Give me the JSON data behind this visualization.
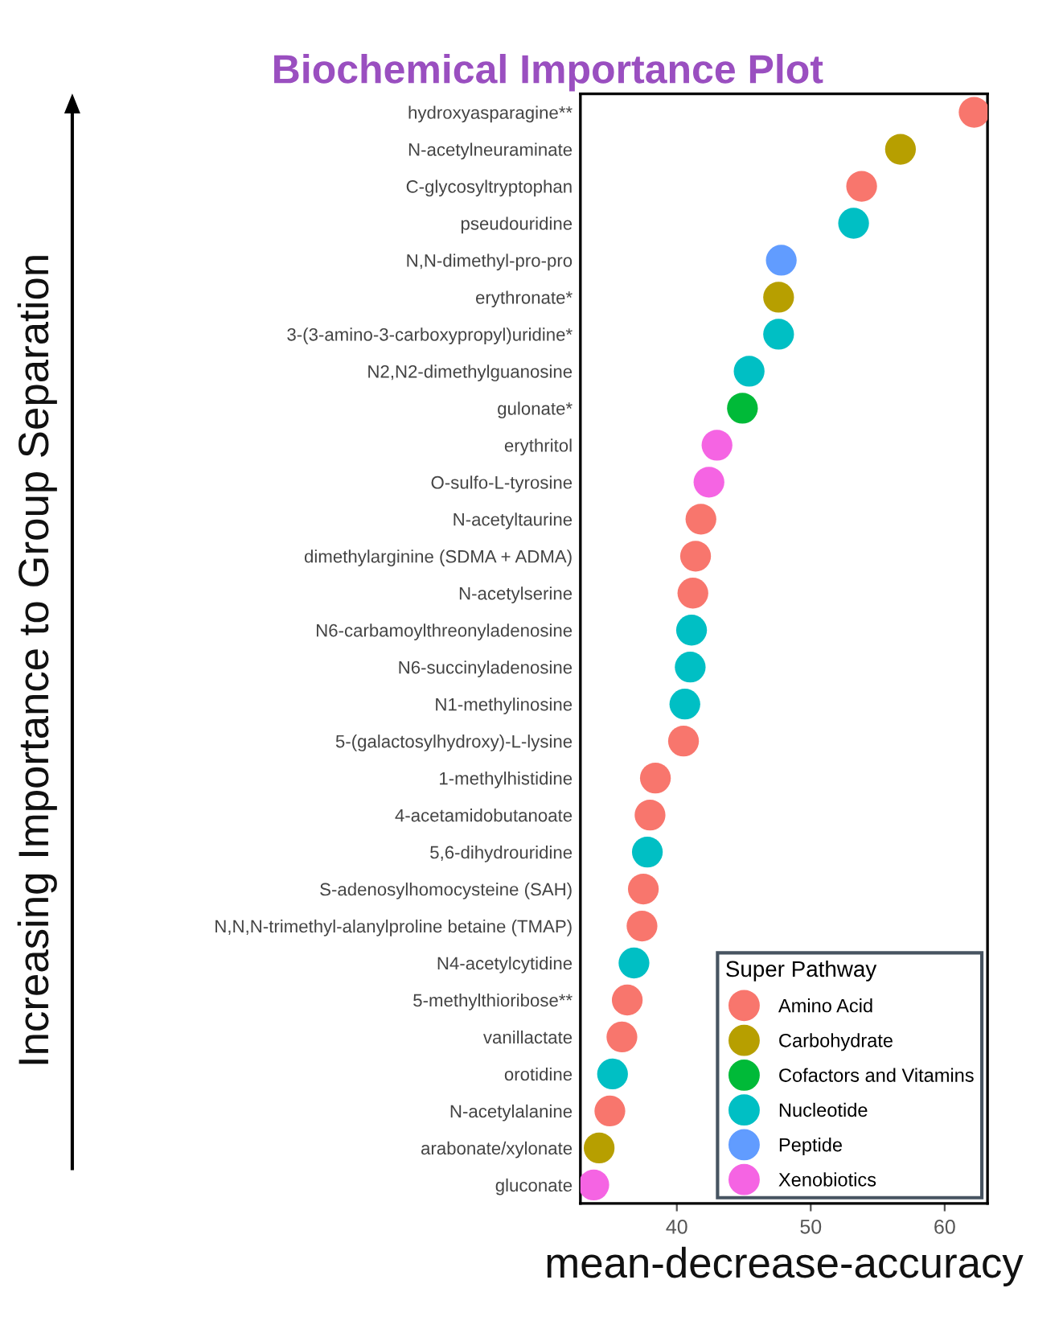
{
  "chart_data": {
    "type": "scatter",
    "title": "Biochemical Importance Plot",
    "xlabel": "mean-decrease-accuracy",
    "ylabel": "Increasing Importance to Group Separation",
    "legend_title": "Super Pathway",
    "legend": "bottom right",
    "grid": false,
    "marker": "circle",
    "orientation": "horizontal",
    "xlim": [
      32.8,
      63.2
    ],
    "xticks": [
      40,
      50,
      60
    ],
    "categories": [
      "hydroxyasparagine**",
      "N-acetylneuraminate",
      "C-glycosyltryptophan",
      "pseudouridine",
      "N,N-dimethyl-pro-pro",
      "erythronate*",
      "3-(3-amino-3-carboxypropyl)uridine*",
      "N2,N2-dimethylguanosine",
      "gulonate*",
      "erythritol",
      "O-sulfo-L-tyrosine",
      "N-acetyltaurine",
      "dimethylarginine (SDMA + ADMA)",
      "N-acetylserine",
      "N6-carbamoylthreonyladenosine",
      "N6-succinyladenosine",
      "N1-methylinosine",
      "5-(galactosylhydroxy)-L-lysine",
      "1-methylhistidine",
      "4-acetamidobutanoate",
      "5,6-dihydrouridine",
      "S-adenosylhomocysteine (SAH)",
      "N,N,N-trimethyl-alanylproline betaine (TMAP)",
      "N4-acetylcytidine",
      "5-methylthioribose**",
      "vanillactate",
      "orotidine",
      "N-acetylalanine",
      "arabonate/xylonate",
      "gluconate"
    ],
    "series": [
      {
        "name": "Amino Acid",
        "color": "#f8766d",
        "values": [
          62.2,
          null,
          53.8,
          null,
          null,
          null,
          null,
          null,
          null,
          null,
          null,
          41.8,
          41.4,
          41.2,
          null,
          null,
          null,
          40.5,
          38.4,
          38.0,
          null,
          37.5,
          37.4,
          null,
          36.3,
          35.9,
          null,
          35.0,
          null,
          null
        ]
      },
      {
        "name": "Carbohydrate",
        "color": "#b79f00",
        "values": [
          null,
          56.7,
          null,
          null,
          null,
          47.6,
          null,
          null,
          null,
          null,
          null,
          null,
          null,
          null,
          null,
          null,
          null,
          null,
          null,
          null,
          null,
          null,
          null,
          null,
          null,
          null,
          null,
          null,
          34.2,
          null
        ]
      },
      {
        "name": "Cofactors and Vitamins",
        "color": "#00ba38",
        "values": [
          null,
          null,
          null,
          null,
          null,
          null,
          null,
          null,
          44.9,
          null,
          null,
          null,
          null,
          null,
          null,
          null,
          null,
          null,
          null,
          null,
          null,
          null,
          null,
          null,
          null,
          null,
          null,
          null,
          null,
          null
        ]
      },
      {
        "name": "Nucleotide",
        "color": "#00bfc4",
        "values": [
          null,
          null,
          null,
          53.2,
          null,
          null,
          47.6,
          45.4,
          null,
          null,
          null,
          null,
          null,
          null,
          41.1,
          41.0,
          40.6,
          null,
          null,
          null,
          37.8,
          null,
          null,
          36.8,
          null,
          null,
          35.2,
          null,
          null,
          null
        ]
      },
      {
        "name": "Peptide",
        "color": "#619cff",
        "values": [
          null,
          null,
          null,
          null,
          47.8,
          null,
          null,
          null,
          null,
          null,
          null,
          null,
          null,
          null,
          null,
          null,
          null,
          null,
          null,
          null,
          null,
          null,
          null,
          null,
          null,
          null,
          null,
          null,
          null,
          null
        ]
      },
      {
        "name": "Xenobiotics",
        "color": "#f564e3",
        "values": [
          null,
          null,
          null,
          null,
          null,
          null,
          null,
          null,
          null,
          43.0,
          42.4,
          null,
          null,
          null,
          null,
          null,
          null,
          null,
          null,
          null,
          null,
          null,
          null,
          null,
          null,
          null,
          null,
          null,
          null,
          33.8
        ]
      }
    ]
  }
}
